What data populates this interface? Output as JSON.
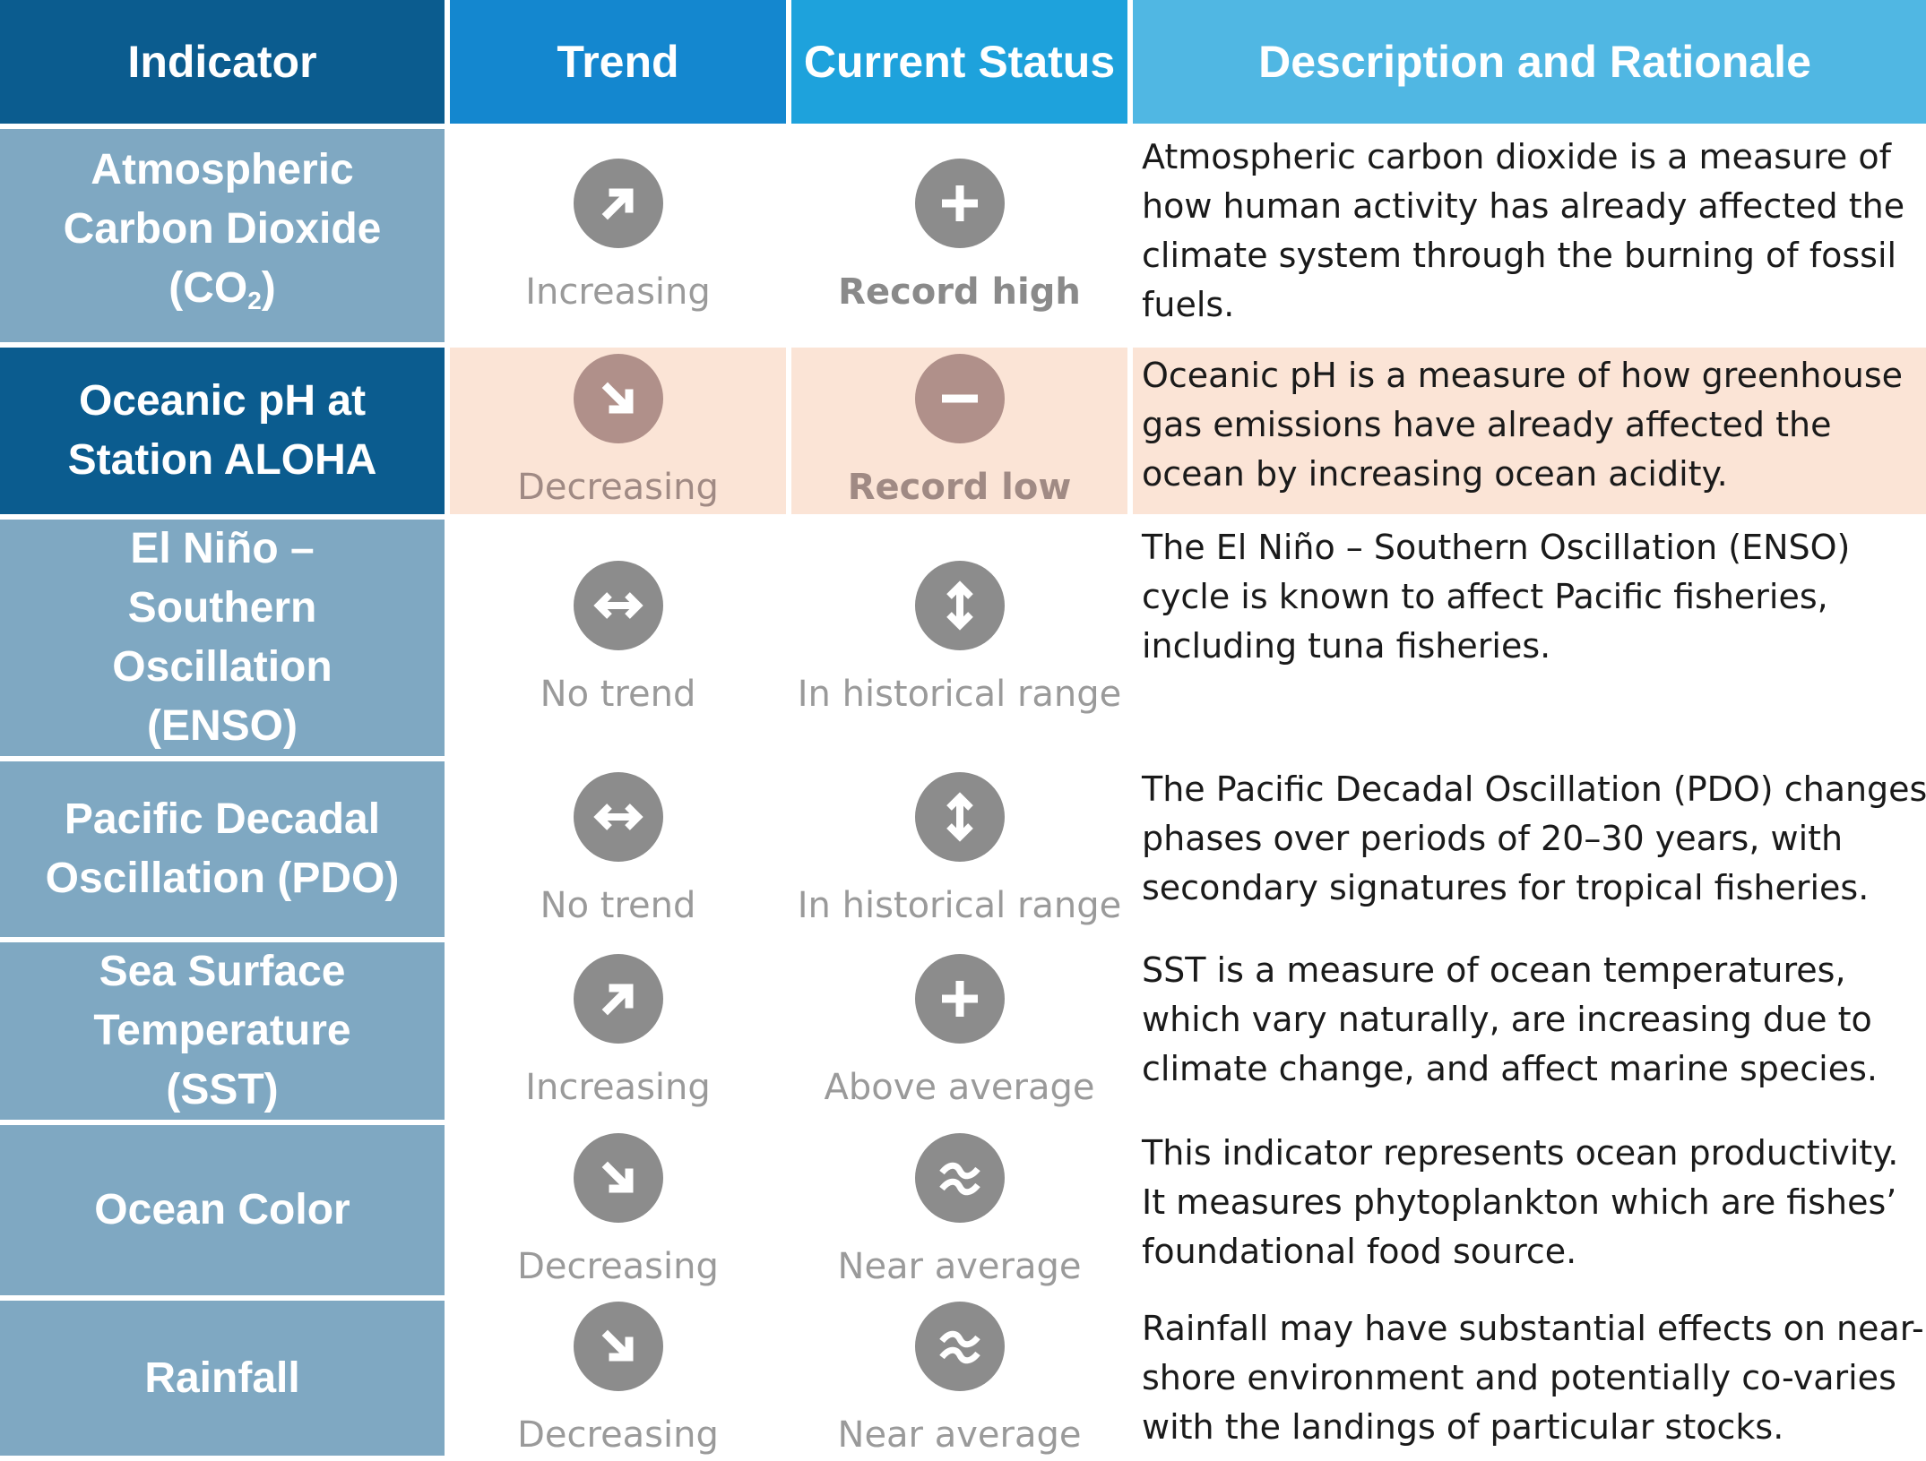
{
  "header": {
    "indicator": "Indicator",
    "trend": "Trend",
    "status": "Current Status",
    "description": "Description and Rationale"
  },
  "rows": [
    {
      "indicator": "Atmospheric Carbon Dioxide (CO",
      "indicator_sub": "2",
      "indicator_suffix": ")",
      "trend_icon": "arrow-up-right-icon",
      "trend": "Increasing",
      "status_icon": "plus-icon",
      "status": "Record high",
      "description": "Atmospheric carbon dioxide is a measure of how human activity has already affected the climate system through the burning of fossil fuels."
    },
    {
      "indicator": "Oceanic pH at Station ALOHA",
      "trend_icon": "arrow-down-right-icon",
      "trend": "Decreasing",
      "status_icon": "minus-icon",
      "status": "Record low",
      "description": "Oceanic pH is a measure of how greenhouse gas emissions have already affected the ocean by increasing ocean acidity."
    },
    {
      "indicator": "El Niño – Southern Oscillation (ENSO)",
      "trend_icon": "arrow-left-right-icon",
      "trend": "No trend",
      "status_icon": "arrow-up-down-icon",
      "status": "In historical range",
      "description": "The El Niño – Southern Oscillation (ENSO) cycle is known to affect Pacific fisheries, including tuna fisheries."
    },
    {
      "indicator": "Pacific Decadal Oscillation (PDO)",
      "trend_icon": "arrow-left-right-icon",
      "trend": "No trend",
      "status_icon": "arrow-up-down-icon",
      "status": "In historical range",
      "description": "The Pacific Decadal Oscillation (PDO) changes phases over periods of 20–30 years, with secondary signatures for tropical fisheries."
    },
    {
      "indicator": "Sea Surface Temperature (SST)",
      "trend_icon": "arrow-up-right-icon",
      "trend": "Increasing",
      "status_icon": "plus-icon",
      "status": "Above average",
      "description": "SST is a measure of ocean temperatures, which vary naturally, are increasing due to climate change, and affect marine species."
    },
    {
      "indicator": "Ocean Color",
      "trend_icon": "arrow-down-right-icon",
      "trend": "Decreasing",
      "status_icon": "approx-icon",
      "status": "Near average",
      "description": "This indicator represents ocean productivity. It measures phytoplankton which are fishes’ foundational food source."
    },
    {
      "indicator": "Rainfall",
      "trend_icon": "arrow-down-right-icon",
      "trend": "Decreasing",
      "status_icon": "approx-icon",
      "status": "Near average",
      "description": "Rainfall may have substantial effects on near-shore environment and potentially co-varies with the landings of particular stocks."
    }
  ]
}
